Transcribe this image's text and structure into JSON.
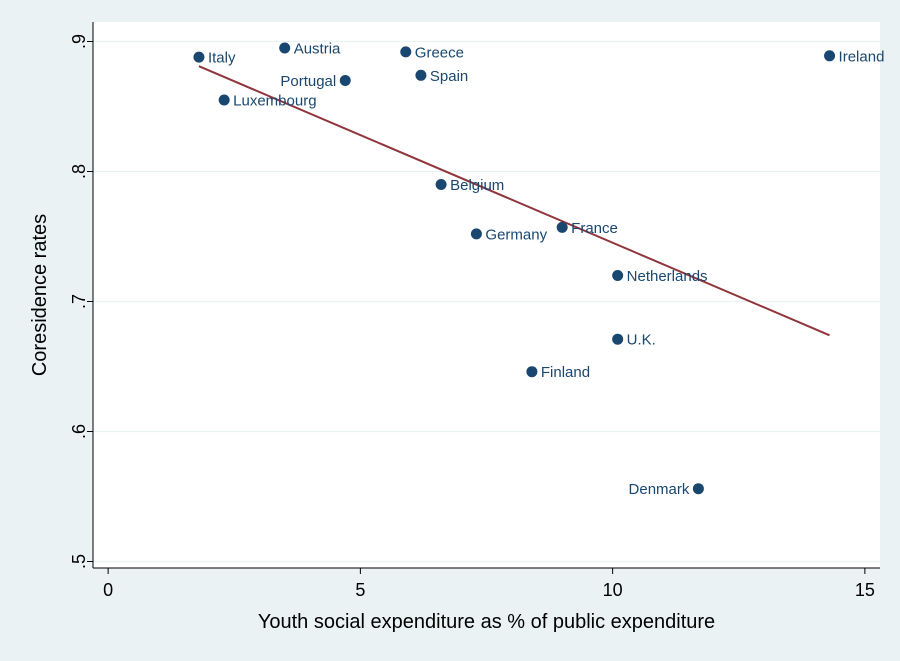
{
  "chart_data": {
    "type": "scatter",
    "title": "",
    "xlabel": "Youth social expenditure as % of public expenditure",
    "ylabel": "Coresidence rates",
    "xlim": [
      -0.3,
      15.3
    ],
    "ylim": [
      0.495,
      0.915
    ],
    "x_ticks": [
      {
        "value": 0,
        "label": "0"
      },
      {
        "value": 5,
        "label": "5"
      },
      {
        "value": 10,
        "label": "10"
      },
      {
        "value": 15,
        "label": "15"
      }
    ],
    "y_ticks": [
      {
        "value": 0.5,
        "label": ".5"
      },
      {
        "value": 0.6,
        "label": ".6"
      },
      {
        "value": 0.7,
        "label": ".7"
      },
      {
        "value": 0.8,
        "label": ".8"
      },
      {
        "value": 0.9,
        "label": ".9"
      }
    ],
    "y_gridlines": true,
    "points": [
      {
        "label": "Italy",
        "x": 1.8,
        "y": 0.888,
        "label_side": "right"
      },
      {
        "label": "Austria",
        "x": 3.5,
        "y": 0.895,
        "label_side": "right"
      },
      {
        "label": "Greece",
        "x": 5.9,
        "y": 0.892,
        "label_side": "right"
      },
      {
        "label": "Ireland",
        "x": 14.3,
        "y": 0.889,
        "label_side": "right"
      },
      {
        "label": "Portugal",
        "x": 4.7,
        "y": 0.87,
        "label_side": "left"
      },
      {
        "label": "Spain",
        "x": 6.2,
        "y": 0.874,
        "label_side": "right"
      },
      {
        "label": "Luxembourg",
        "x": 2.3,
        "y": 0.855,
        "label_side": "right"
      },
      {
        "label": "Belgium",
        "x": 6.6,
        "y": 0.79,
        "label_side": "right"
      },
      {
        "label": "Germany",
        "x": 7.3,
        "y": 0.752,
        "label_side": "right"
      },
      {
        "label": "France",
        "x": 9.0,
        "y": 0.757,
        "label_side": "right"
      },
      {
        "label": "Netherlands",
        "x": 10.1,
        "y": 0.72,
        "label_side": "right"
      },
      {
        "label": "U.K.",
        "x": 10.1,
        "y": 0.671,
        "label_side": "right"
      },
      {
        "label": "Finland",
        "x": 8.4,
        "y": 0.646,
        "label_side": "right"
      },
      {
        "label": "Denmark",
        "x": 11.7,
        "y": 0.556,
        "label_side": "left"
      }
    ],
    "fit_line": {
      "x": [
        1.8,
        14.3
      ],
      "y": [
        0.881,
        0.674
      ]
    },
    "colors": {
      "background": "#eaf2f3",
      "plot_area": "#ffffff",
      "marker": "#1a476f",
      "fit_line": "#90353b",
      "grid": "#eaf2f3",
      "axis": "#000000",
      "text": "#000000"
    }
  }
}
